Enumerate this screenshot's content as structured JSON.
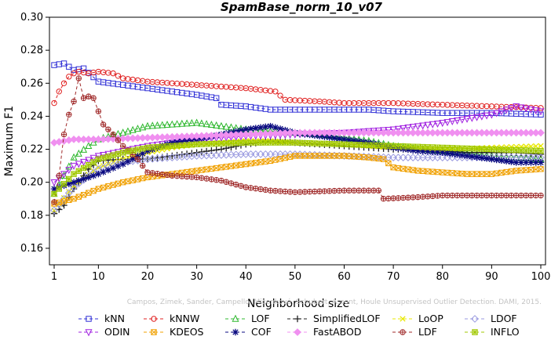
{
  "chart_data": {
    "type": "line",
    "title": "SpamBase_norm_10_v07",
    "xlabel": "Neighborhood size",
    "ylabel": "Maximum F1",
    "xlim": [
      1,
      100
    ],
    "ylim": [
      0.15,
      0.3
    ],
    "xticks": [
      1,
      10,
      20,
      30,
      40,
      50,
      60,
      70,
      80,
      90,
      100
    ],
    "yticks": [
      0.16,
      0.18,
      0.2,
      0.22,
      0.24,
      0.26,
      0.28,
      0.3
    ],
    "grid": false,
    "legend_position": "bottom",
    "watermark": "Campos, Zimek, Sander, Campello, Micenková, Schubert, Assent, Houle Unsupervised Outlier Detection. DAMI, 2015.",
    "series": [
      {
        "name": "kNN",
        "color": "#2f2fd6",
        "marker": "square",
        "points": [
          [
            1,
            0.271
          ],
          [
            3,
            0.272
          ],
          [
            5,
            0.268
          ],
          [
            7,
            0.269
          ],
          [
            10,
            0.261
          ],
          [
            15,
            0.259
          ],
          [
            20,
            0.257
          ],
          [
            25,
            0.255
          ],
          [
            30,
            0.253
          ],
          [
            34,
            0.251
          ],
          [
            35,
            0.247
          ],
          [
            40,
            0.246
          ],
          [
            45,
            0.244
          ],
          [
            50,
            0.244
          ],
          [
            55,
            0.244
          ],
          [
            60,
            0.244
          ],
          [
            65,
            0.244
          ],
          [
            70,
            0.243
          ],
          [
            80,
            0.242
          ],
          [
            90,
            0.242
          ],
          [
            100,
            0.241
          ]
        ]
      },
      {
        "name": "kNNW",
        "color": "#e02020",
        "marker": "circle",
        "points": [
          [
            1,
            0.248
          ],
          [
            2,
            0.255
          ],
          [
            3,
            0.26
          ],
          [
            4,
            0.264
          ],
          [
            5,
            0.266
          ],
          [
            6,
            0.267
          ],
          [
            8,
            0.266
          ],
          [
            10,
            0.267
          ],
          [
            13,
            0.266
          ],
          [
            15,
            0.263
          ],
          [
            20,
            0.261
          ],
          [
            25,
            0.26
          ],
          [
            30,
            0.259
          ],
          [
            35,
            0.258
          ],
          [
            40,
            0.257
          ],
          [
            46,
            0.255
          ],
          [
            48,
            0.25
          ],
          [
            55,
            0.249
          ],
          [
            60,
            0.248
          ],
          [
            70,
            0.248
          ],
          [
            80,
            0.247
          ],
          [
            90,
            0.246
          ],
          [
            100,
            0.245
          ]
        ]
      },
      {
        "name": "LOF",
        "color": "#2fb82f",
        "marker": "triangle-up",
        "points": [
          [
            1,
            0.193
          ],
          [
            5,
            0.215
          ],
          [
            8,
            0.222
          ],
          [
            10,
            0.226
          ],
          [
            15,
            0.23
          ],
          [
            20,
            0.234
          ],
          [
            25,
            0.235
          ],
          [
            30,
            0.236
          ],
          [
            35,
            0.234
          ],
          [
            40,
            0.232
          ],
          [
            45,
            0.231
          ],
          [
            50,
            0.23
          ],
          [
            55,
            0.229
          ],
          [
            60,
            0.227
          ],
          [
            65,
            0.225
          ],
          [
            70,
            0.222
          ],
          [
            80,
            0.219
          ],
          [
            90,
            0.216
          ],
          [
            100,
            0.214
          ]
        ]
      },
      {
        "name": "SimplifiedLOF",
        "color": "#222222",
        "marker": "plus",
        "points": [
          [
            1,
            0.181
          ],
          [
            3,
            0.186
          ],
          [
            5,
            0.196
          ],
          [
            8,
            0.208
          ],
          [
            10,
            0.213
          ],
          [
            15,
            0.214
          ],
          [
            20,
            0.214
          ],
          [
            25,
            0.216
          ],
          [
            30,
            0.218
          ],
          [
            35,
            0.22
          ],
          [
            40,
            0.223
          ],
          [
            45,
            0.225
          ],
          [
            50,
            0.224
          ],
          [
            55,
            0.223
          ],
          [
            60,
            0.222
          ],
          [
            65,
            0.221
          ],
          [
            70,
            0.22
          ],
          [
            75,
            0.22
          ],
          [
            80,
            0.219
          ],
          [
            85,
            0.218
          ],
          [
            90,
            0.218
          ],
          [
            95,
            0.218
          ],
          [
            100,
            0.217
          ]
        ]
      },
      {
        "name": "LoOP",
        "color": "#e8e800",
        "marker": "x",
        "points": [
          [
            1,
            0.183
          ],
          [
            5,
            0.198
          ],
          [
            10,
            0.209
          ],
          [
            15,
            0.214
          ],
          [
            20,
            0.218
          ],
          [
            25,
            0.221
          ],
          [
            30,
            0.223
          ],
          [
            35,
            0.224
          ],
          [
            40,
            0.225
          ],
          [
            45,
            0.225
          ],
          [
            50,
            0.224
          ],
          [
            60,
            0.223
          ],
          [
            70,
            0.221
          ],
          [
            80,
            0.22
          ],
          [
            90,
            0.221
          ],
          [
            100,
            0.222
          ]
        ]
      },
      {
        "name": "LDOF",
        "color": "#9a9ae0",
        "marker": "diamond",
        "points": [
          [
            1,
            0.183
          ],
          [
            5,
            0.197
          ],
          [
            10,
            0.208
          ],
          [
            15,
            0.212
          ],
          [
            20,
            0.214
          ],
          [
            25,
            0.215
          ],
          [
            30,
            0.216
          ],
          [
            40,
            0.217
          ],
          [
            50,
            0.217
          ],
          [
            60,
            0.216
          ],
          [
            70,
            0.215
          ],
          [
            80,
            0.215
          ],
          [
            90,
            0.215
          ],
          [
            100,
            0.215
          ]
        ]
      },
      {
        "name": "ODIN",
        "color": "#a020e0",
        "marker": "triangle-down",
        "points": [
          [
            1,
            0.2
          ],
          [
            5,
            0.21
          ],
          [
            10,
            0.216
          ],
          [
            20,
            0.222
          ],
          [
            30,
            0.226
          ],
          [
            40,
            0.228
          ],
          [
            50,
            0.229
          ],
          [
            60,
            0.23
          ],
          [
            70,
            0.232
          ],
          [
            80,
            0.236
          ],
          [
            90,
            0.241
          ],
          [
            95,
            0.246
          ],
          [
            100,
            0.243
          ]
        ]
      },
      {
        "name": "KDEOS",
        "color": "#f0a000",
        "marker": "square-x",
        "points": [
          [
            1,
            0.187
          ],
          [
            5,
            0.19
          ],
          [
            10,
            0.196
          ],
          [
            15,
            0.2
          ],
          [
            20,
            0.203
          ],
          [
            25,
            0.205
          ],
          [
            30,
            0.207
          ],
          [
            35,
            0.209
          ],
          [
            40,
            0.211
          ],
          [
            45,
            0.213
          ],
          [
            50,
            0.216
          ],
          [
            55,
            0.216
          ],
          [
            60,
            0.216
          ],
          [
            65,
            0.215
          ],
          [
            68,
            0.214
          ],
          [
            70,
            0.209
          ],
          [
            75,
            0.207
          ],
          [
            80,
            0.206
          ],
          [
            85,
            0.205
          ],
          [
            90,
            0.205
          ],
          [
            95,
            0.207
          ],
          [
            100,
            0.208
          ]
        ]
      },
      {
        "name": "COF",
        "color": "#0a0a80",
        "marker": "asterisk",
        "points": [
          [
            1,
            0.196
          ],
          [
            5,
            0.2
          ],
          [
            10,
            0.205
          ],
          [
            15,
            0.211
          ],
          [
            20,
            0.219
          ],
          [
            25,
            0.224
          ],
          [
            30,
            0.226
          ],
          [
            35,
            0.229
          ],
          [
            40,
            0.232
          ],
          [
            45,
            0.234
          ],
          [
            50,
            0.23
          ],
          [
            55,
            0.228
          ],
          [
            60,
            0.226
          ],
          [
            65,
            0.224
          ],
          [
            70,
            0.221
          ],
          [
            75,
            0.219
          ],
          [
            80,
            0.218
          ],
          [
            85,
            0.216
          ],
          [
            90,
            0.214
          ],
          [
            95,
            0.212
          ],
          [
            100,
            0.212
          ]
        ]
      },
      {
        "name": "FastABOD",
        "color": "#f090f0",
        "marker": "diamond-filled",
        "points": [
          [
            1,
            0.224
          ],
          [
            5,
            0.226
          ],
          [
            10,
            0.226
          ],
          [
            20,
            0.227
          ],
          [
            30,
            0.228
          ],
          [
            40,
            0.229
          ],
          [
            50,
            0.23
          ],
          [
            60,
            0.23
          ],
          [
            70,
            0.23
          ],
          [
            80,
            0.23
          ],
          [
            90,
            0.23
          ],
          [
            100,
            0.23
          ]
        ]
      },
      {
        "name": "LDF",
        "color": "#a02a2a",
        "marker": "circle-plus",
        "points": [
          [
            1,
            0.188
          ],
          [
            2,
            0.204
          ],
          [
            3,
            0.229
          ],
          [
            4,
            0.241
          ],
          [
            5,
            0.249
          ],
          [
            6,
            0.263
          ],
          [
            7,
            0.251
          ],
          [
            8,
            0.252
          ],
          [
            9,
            0.251
          ],
          [
            10,
            0.243
          ],
          [
            11,
            0.235
          ],
          [
            13,
            0.229
          ],
          [
            15,
            0.222
          ],
          [
            18,
            0.214
          ],
          [
            20,
            0.206
          ],
          [
            25,
            0.204
          ],
          [
            30,
            0.203
          ],
          [
            35,
            0.201
          ],
          [
            40,
            0.197
          ],
          [
            45,
            0.195
          ],
          [
            50,
            0.194
          ],
          [
            60,
            0.195
          ],
          [
            67,
            0.195
          ],
          [
            68,
            0.19
          ],
          [
            75,
            0.191
          ],
          [
            80,
            0.192
          ],
          [
            90,
            0.192
          ],
          [
            100,
            0.192
          ]
        ]
      },
      {
        "name": "INFLO",
        "color": "#a0c800",
        "marker": "square-star",
        "points": [
          [
            1,
            0.193
          ],
          [
            5,
            0.205
          ],
          [
            10,
            0.214
          ],
          [
            15,
            0.218
          ],
          [
            20,
            0.221
          ],
          [
            25,
            0.222
          ],
          [
            30,
            0.223
          ],
          [
            40,
            0.224
          ],
          [
            50,
            0.224
          ],
          [
            60,
            0.223
          ],
          [
            70,
            0.222
          ],
          [
            80,
            0.221
          ],
          [
            90,
            0.22
          ],
          [
            100,
            0.219
          ]
        ]
      }
    ],
    "legend_rows": [
      [
        "kNN",
        "kNNW",
        "LOF",
        "SimplifiedLOF",
        "LoOP",
        "LDOF"
      ],
      [
        "ODIN",
        "KDEOS",
        "COF",
        "FastABOD",
        "LDF",
        "INFLO"
      ]
    ]
  }
}
